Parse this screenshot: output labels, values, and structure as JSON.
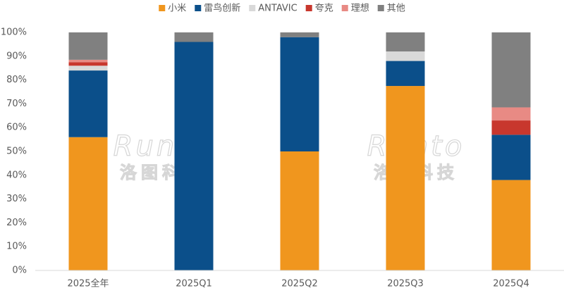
{
  "chart_data": {
    "type": "stacked-bar",
    "categories": [
      "2025全年",
      "2025Q1",
      "2025Q2",
      "2025Q3",
      "2025Q4"
    ],
    "series": [
      {
        "name": "小米",
        "color": "#F0961E",
        "values": [
          56,
          0,
          50,
          77.5,
          38
        ]
      },
      {
        "name": "雷鸟创新",
        "color": "#0B4F8A",
        "values": [
          28,
          96,
          48,
          10.5,
          19
        ]
      },
      {
        "name": "ANTAVIC",
        "color": "#D9D9D9",
        "values": [
          2,
          0,
          0,
          4,
          0
        ]
      },
      {
        "name": "夸克",
        "color": "#C8372D",
        "values": [
          1.5,
          0,
          0,
          0,
          6
        ]
      },
      {
        "name": "理想",
        "color": "#E88A84",
        "values": [
          1,
          0,
          0,
          0,
          5.5
        ]
      },
      {
        "name": "其他",
        "color": "#808080",
        "values": [
          11.5,
          4,
          2,
          8,
          31.5
        ]
      }
    ],
    "ylim": [
      0,
      100
    ],
    "yticks": [
      {
        "value": 0,
        "label": "0%"
      },
      {
        "value": 10,
        "label": "10%"
      },
      {
        "value": 20,
        "label": "20%"
      },
      {
        "value": 30,
        "label": "30%"
      },
      {
        "value": 40,
        "label": "40%"
      },
      {
        "value": 50,
        "label": "50%"
      },
      {
        "value": 60,
        "label": "60%"
      },
      {
        "value": 70,
        "label": "70%"
      },
      {
        "value": 80,
        "label": "80%"
      },
      {
        "value": 90,
        "label": "90%"
      },
      {
        "value": 100,
        "label": "100%"
      }
    ],
    "legend": "top",
    "watermark": {
      "logo": "Runto",
      "name": "洛图科技"
    }
  }
}
